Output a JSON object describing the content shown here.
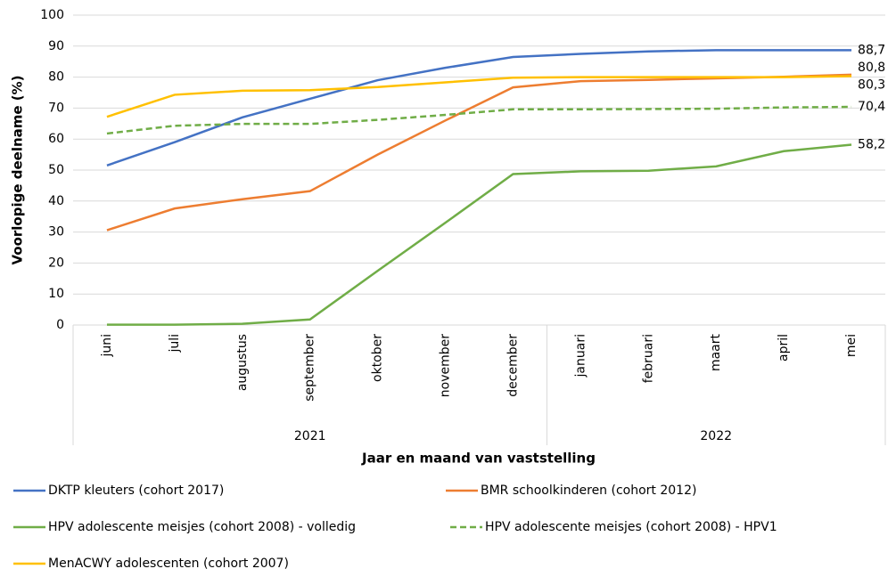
{
  "chart_data": {
    "type": "line",
    "y_axis_label": "Voorlopige deelname (%)",
    "x_axis_label": "Jaar en maand van vaststelling",
    "categories": [
      "juni",
      "juli",
      "augustus",
      "september",
      "oktober",
      "november",
      "december",
      "januari",
      "februari",
      "maart",
      "april",
      "mei"
    ],
    "x_groups": [
      {
        "label": "2021",
        "span": 7
      },
      {
        "label": "2022",
        "span": 5
      }
    ],
    "ylim": [
      0,
      100
    ],
    "yticks": [
      0,
      10,
      20,
      30,
      40,
      50,
      60,
      70,
      80,
      90,
      100
    ],
    "grid": true,
    "series": [
      {
        "name": "DKTP kleuters (cohort 2017)",
        "color": "#4472c4",
        "dash": false,
        "values": [
          51.5,
          59,
          67,
          73,
          79,
          83,
          86.5,
          87.5,
          88.3,
          88.7,
          88.7,
          88.7
        ],
        "value_labels": [
          null,
          null,
          null,
          null,
          null,
          null,
          null,
          null,
          null,
          null,
          null,
          "88,7"
        ]
      },
      {
        "name": "BMR schoolkinderen (cohort 2012)",
        "color": "#ed7d31",
        "dash": false,
        "values": [
          30.6,
          37.6,
          40.6,
          43.2,
          55,
          66,
          76.7,
          78.7,
          79.1,
          79.6,
          80.1,
          80.8
        ],
        "value_labels": [
          null,
          null,
          null,
          null,
          null,
          null,
          null,
          null,
          null,
          null,
          null,
          "80,8"
        ]
      },
      {
        "name": "HPV adolescente meisjes (cohort 2008) - volledig",
        "color": "#70ad47",
        "dash": false,
        "values": [
          0.1,
          0.1,
          0.4,
          1.8,
          17.5,
          33,
          48.7,
          49.6,
          49.8,
          51.2,
          56.1,
          58.2
        ],
        "value_labels": [
          null,
          null,
          null,
          null,
          null,
          null,
          null,
          null,
          null,
          null,
          null,
          "58,2"
        ]
      },
      {
        "name": "HPV adolescente meisjes (cohort 2008) - HPV1",
        "color": "#70ad47",
        "dash": true,
        "values": [
          61.8,
          64.3,
          64.9,
          64.9,
          66.2,
          67.8,
          69.6,
          69.6,
          69.7,
          69.8,
          70.2,
          70.4
        ],
        "value_labels": [
          null,
          null,
          null,
          null,
          null,
          null,
          null,
          null,
          null,
          null,
          null,
          "70,4"
        ]
      },
      {
        "name": "MenACWY adolescenten (cohort 2007)",
        "color": "#ffc000",
        "dash": false,
        "values": [
          67.2,
          74.3,
          75.6,
          75.8,
          76.8,
          78.3,
          79.8,
          80,
          80,
          80,
          80,
          80.3
        ],
        "value_labels": [
          null,
          null,
          null,
          null,
          null,
          null,
          null,
          null,
          null,
          null,
          null,
          "80,3"
        ]
      }
    ]
  }
}
